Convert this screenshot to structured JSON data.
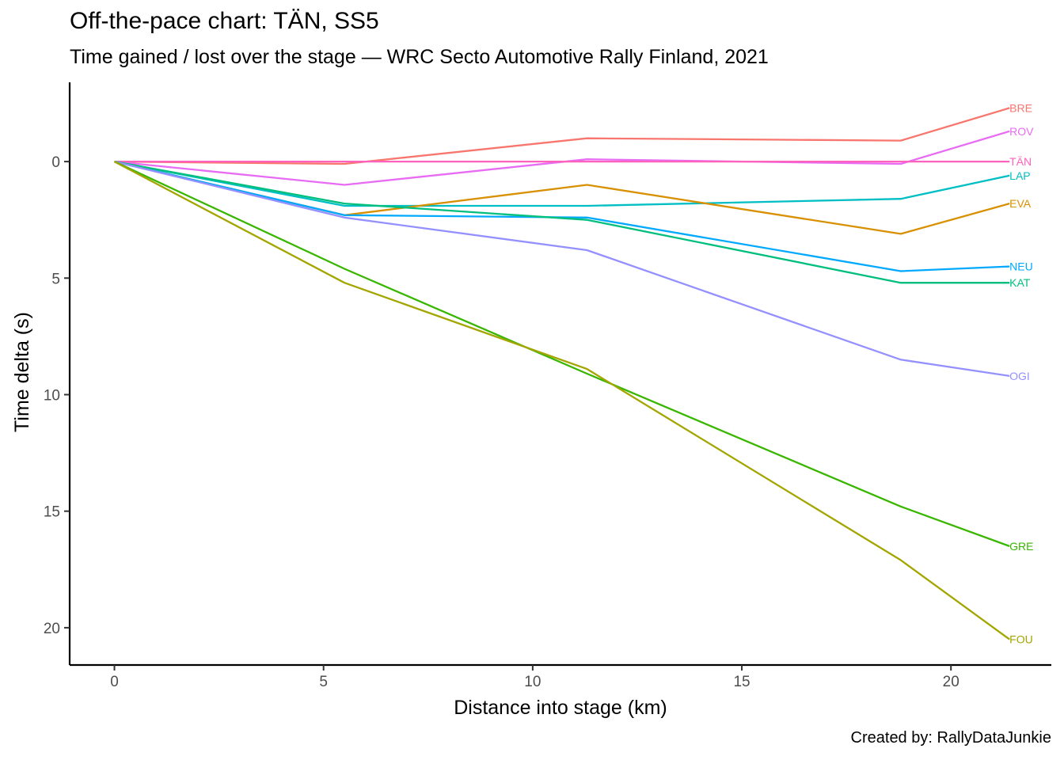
{
  "chart_data": {
    "type": "line",
    "title": "Off-the-pace chart: TÄN, SS5",
    "subtitle": "Time gained / lost over the stage — WRC Secto Automotive Rally Finland, 2021",
    "caption": "Created by: RallyDataJunkie",
    "xlabel": "Distance into stage (km)",
    "ylabel": "Time delta (s)",
    "xlim": [
      -1.07,
      22.4
    ],
    "ylim": [
      -3.4,
      21.6
    ],
    "y_reversed": true,
    "x_ticks": [
      0,
      5,
      10,
      15,
      20
    ],
    "y_ticks": [
      0,
      5,
      10,
      15,
      20
    ],
    "grid": false,
    "series": [
      {
        "name": "BRE",
        "color": "#F8766D",
        "points": [
          [
            0,
            0
          ],
          [
            5.5,
            0.1
          ],
          [
            11.3,
            -1.0
          ],
          [
            18.8,
            -0.9
          ],
          [
            21.4,
            -2.3
          ]
        ]
      },
      {
        "name": "ROV",
        "color": "#E76BF3",
        "points": [
          [
            0,
            0
          ],
          [
            5.5,
            1.0
          ],
          [
            11.3,
            -0.1
          ],
          [
            18.8,
            0.1
          ],
          [
            21.4,
            -1.3
          ]
        ]
      },
      {
        "name": "TÄN",
        "color": "#FF62BC",
        "points": [
          [
            0,
            0
          ],
          [
            5.5,
            0
          ],
          [
            11.3,
            0
          ],
          [
            18.8,
            0
          ],
          [
            21.4,
            0
          ]
        ]
      },
      {
        "name": "LAP",
        "color": "#00BFC4",
        "points": [
          [
            0,
            0
          ],
          [
            5.5,
            1.9
          ],
          [
            11.3,
            1.9
          ],
          [
            18.8,
            1.6
          ],
          [
            21.4,
            0.6
          ]
        ]
      },
      {
        "name": "EVA",
        "color": "#D89000",
        "points": [
          [
            0,
            0
          ],
          [
            5.5,
            2.3
          ],
          [
            11.3,
            1.0
          ],
          [
            18.8,
            3.1
          ],
          [
            21.4,
            1.8
          ]
        ]
      },
      {
        "name": "NEU",
        "color": "#00A9FF",
        "points": [
          [
            0,
            0
          ],
          [
            5.5,
            2.3
          ],
          [
            11.3,
            2.4
          ],
          [
            18.8,
            4.7
          ],
          [
            21.4,
            4.5
          ]
        ]
      },
      {
        "name": "KAT",
        "color": "#00BF7D",
        "points": [
          [
            0,
            0
          ],
          [
            5.5,
            1.8
          ],
          [
            11.3,
            2.5
          ],
          [
            18.8,
            5.2
          ],
          [
            21.4,
            5.2
          ]
        ]
      },
      {
        "name": "OGI",
        "color": "#9590FF",
        "points": [
          [
            0,
            0
          ],
          [
            5.5,
            2.4
          ],
          [
            11.3,
            3.8
          ],
          [
            18.8,
            8.5
          ],
          [
            21.4,
            9.2
          ]
        ]
      },
      {
        "name": "GRE",
        "color": "#39B600",
        "points": [
          [
            0,
            0
          ],
          [
            5.5,
            4.6
          ],
          [
            11.3,
            9.1
          ],
          [
            18.8,
            14.8
          ],
          [
            21.4,
            16.5
          ]
        ]
      },
      {
        "name": "FOU",
        "color": "#A3A500",
        "points": [
          [
            0,
            0
          ],
          [
            5.5,
            5.2
          ],
          [
            11.3,
            8.9
          ],
          [
            18.8,
            17.1
          ],
          [
            21.4,
            20.5
          ]
        ]
      }
    ]
  }
}
